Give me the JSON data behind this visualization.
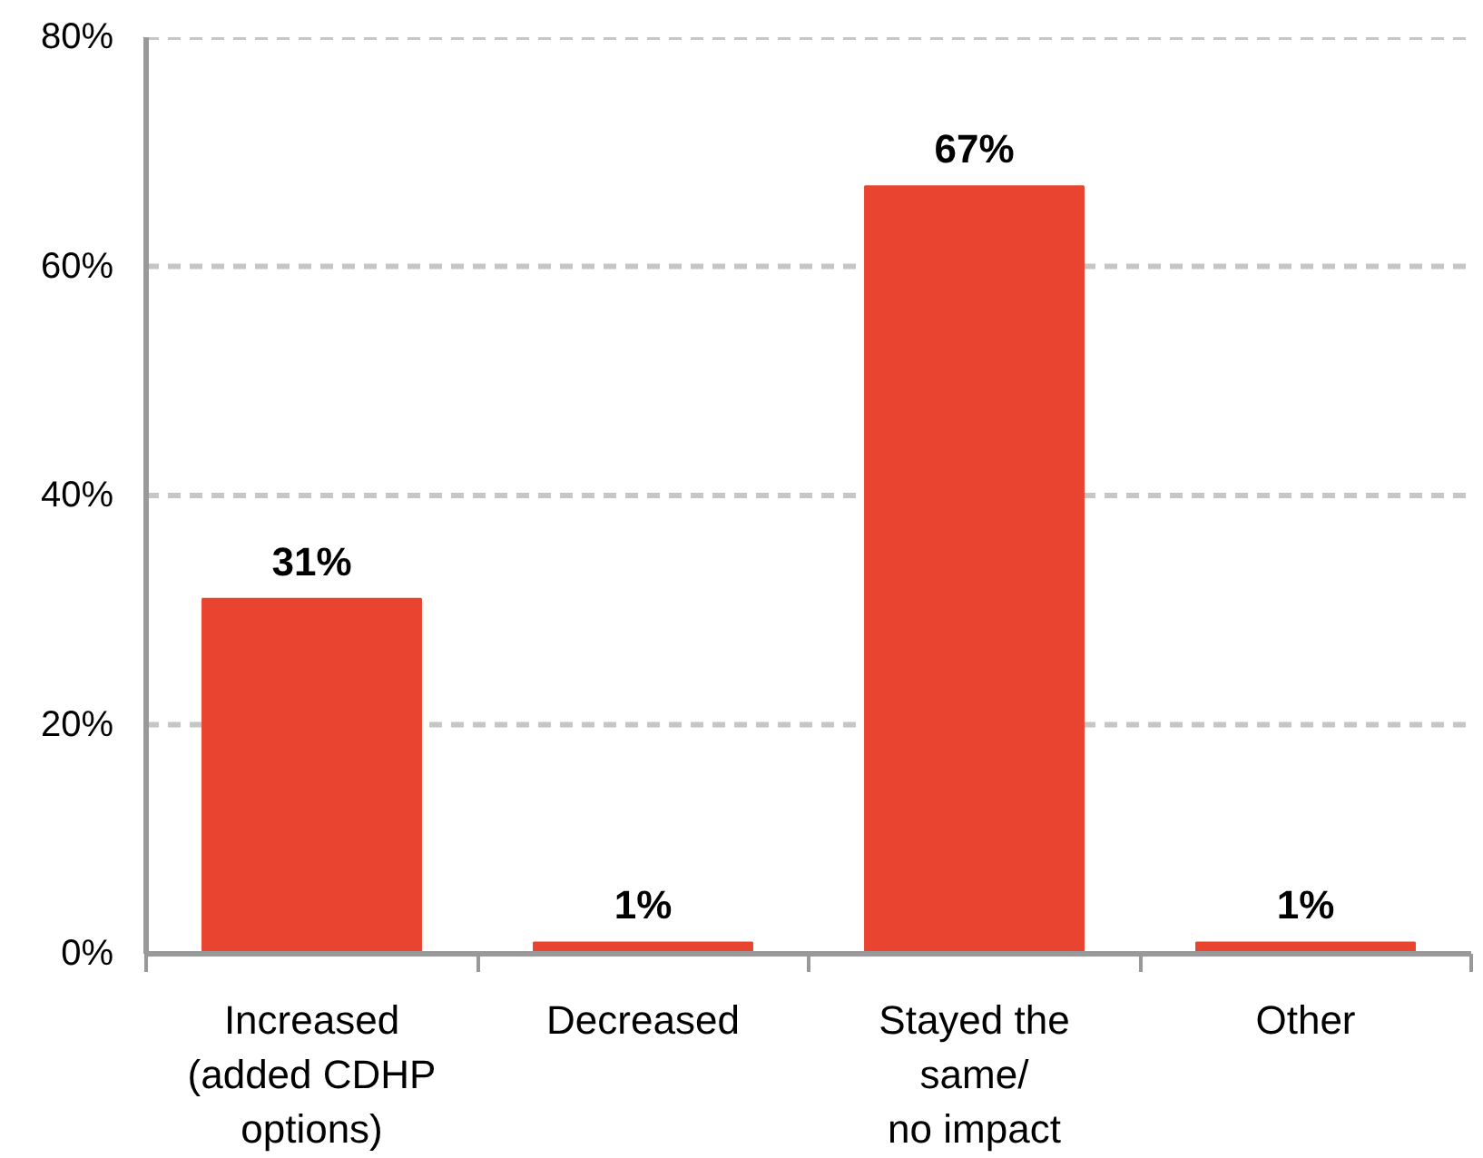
{
  "chart_data": {
    "type": "bar",
    "categories": [
      "Increased\n(added CDHP\noptions)",
      "Decreased",
      "Stayed the\nsame/\nno impact",
      "Other"
    ],
    "values": [
      31,
      1,
      67,
      1
    ],
    "value_labels": [
      "31%",
      "1%",
      "67%",
      "1%"
    ],
    "color": "#e8442f",
    "ylim": [
      0,
      80
    ],
    "yticks": [
      {
        "value": 0,
        "label": "0%"
      },
      {
        "value": 20,
        "label": "20%"
      },
      {
        "value": 40,
        "label": "40%"
      },
      {
        "value": 60,
        "label": "60%"
      },
      {
        "value": 80,
        "label": "80%"
      }
    ],
    "grid": "y"
  }
}
